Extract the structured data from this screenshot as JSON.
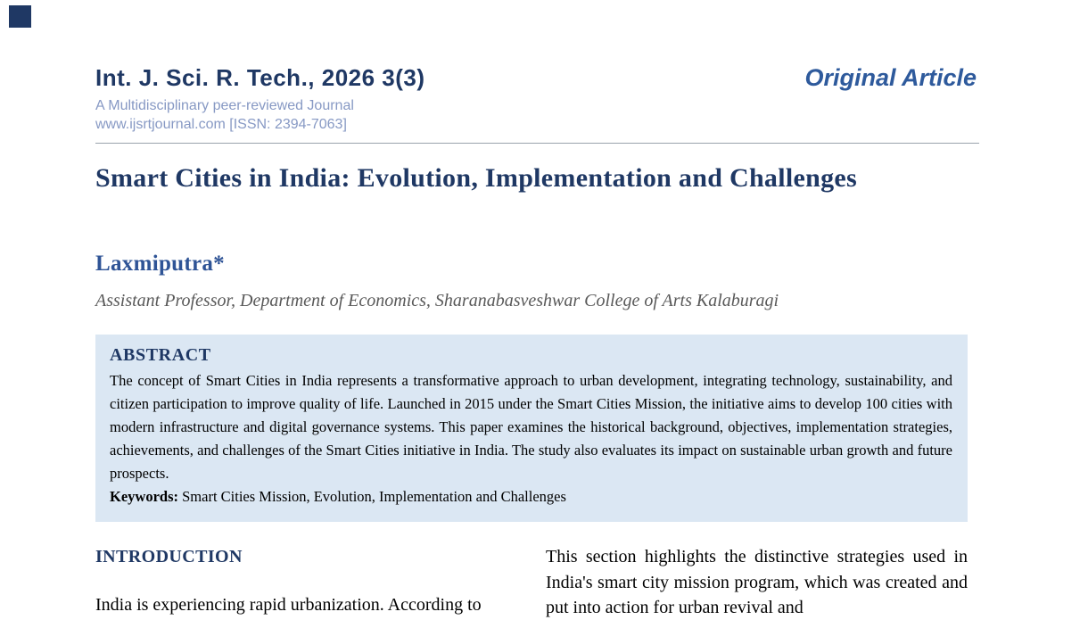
{
  "header": {
    "journal_title": "Int. J. Sci. R. Tech., 2026 3(3)",
    "journal_subtitle": "A Multidisciplinary peer-reviewed Journal",
    "journal_url_issn": "www.ijsrtjournal.com [ISSN: 2394-7063]",
    "article_type": "Original Article"
  },
  "article": {
    "title": "Smart Cities in India: Evolution, Implementation and Challenges",
    "author": "Laxmiputra*",
    "affiliation": "Assistant Professor, Department of Economics, Sharanabasveshwar College of Arts Kalaburagi"
  },
  "abstract": {
    "heading": "ABSTRACT",
    "body": "The concept of Smart Cities in India represents a transformative approach to urban development, integrating technology, sustainability, and citizen participation to improve quality of life. Launched in 2015 under the Smart Cities Mission, the initiative aims to develop 100 cities with modern infrastructure and digital governance systems. This paper examines the historical background, objectives, implementation strategies, achievements, and challenges of the Smart Cities initiative in India. The study also evaluates its impact on sustainable urban growth and future prospects.",
    "keywords_label": "Keywords:",
    "keywords_text": "Smart Cities Mission, Evolution, Implementation and Challenges"
  },
  "sections": {
    "introduction": {
      "heading": "INTRODUCTION",
      "paragraph": "India is experiencing rapid urbanization. According to"
    },
    "right_column": {
      "paragraph": "This section highlights the distinctive strategies used in India's smart city mission program, which was created and put into action for urban revival and"
    }
  },
  "colors": {
    "heading_navy": "#1F3864",
    "author_blue": "#2F5496",
    "article_type_blue": "#2E5A9C",
    "muted_header_blue": "#8799C4",
    "abstract_background": "#DBE7F3",
    "affiliation_gray": "#595959",
    "corner_accent": "#1F3864"
  }
}
